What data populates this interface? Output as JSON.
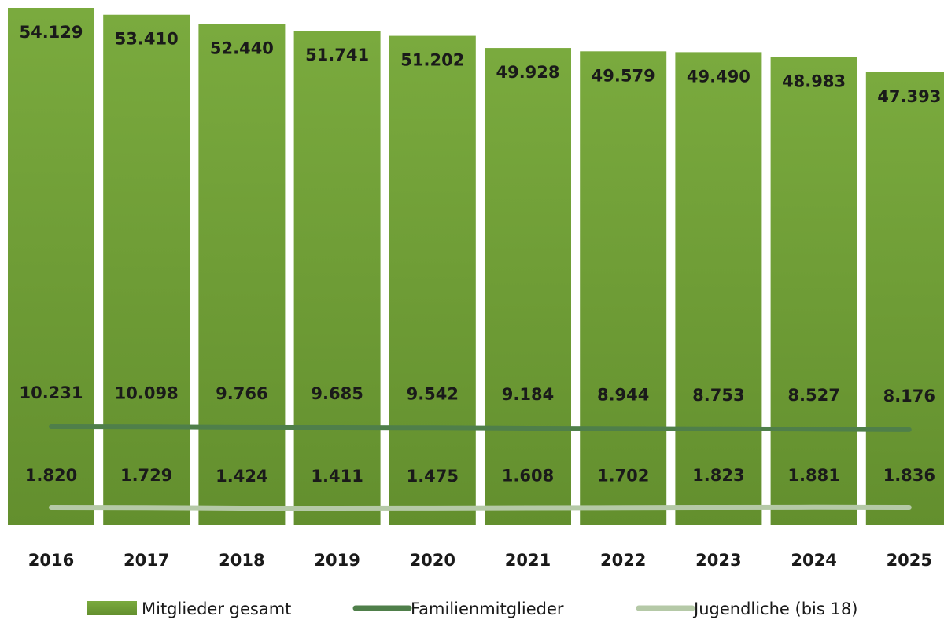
{
  "chart_data": {
    "type": "bar",
    "categories": [
      "2016",
      "2017",
      "2018",
      "2019",
      "2020",
      "2021",
      "2022",
      "2023",
      "2024",
      "2025"
    ],
    "series": [
      {
        "name": "Mitglieder gesamt",
        "kind": "bar",
        "color": "#76a33a",
        "values": [
          54129,
          53410,
          52440,
          51741,
          51202,
          49928,
          49579,
          49490,
          48983,
          47393
        ],
        "labels": [
          "54.129",
          "53.410",
          "52.440",
          "51.741",
          "51.202",
          "49.928",
          "49.579",
          "49.490",
          "48.983",
          "47.393"
        ]
      },
      {
        "name": "Familienmitglieder",
        "kind": "line",
        "color": "#4f7f4a",
        "values": [
          10231,
          10098,
          9766,
          9685,
          9542,
          9184,
          8944,
          8753,
          8527,
          8176
        ],
        "labels": [
          "10.231",
          "10.098",
          "9.766",
          "9.685",
          "9.542",
          "9.184",
          "8.944",
          "8.753",
          "8.527",
          "8.176"
        ]
      },
      {
        "name": "Jugendliche (bis 18)",
        "kind": "line",
        "color": "#b5c9a7",
        "values": [
          1820,
          1729,
          1424,
          1411,
          1475,
          1608,
          1702,
          1823,
          1881,
          1836
        ],
        "labels": [
          "1.820",
          "1.729",
          "1.424",
          "1.411",
          "1.475",
          "1.608",
          "1.702",
          "1.823",
          "1.881",
          "1.836"
        ]
      }
    ],
    "legend": {
      "position": "bottom"
    },
    "grid": false
  }
}
